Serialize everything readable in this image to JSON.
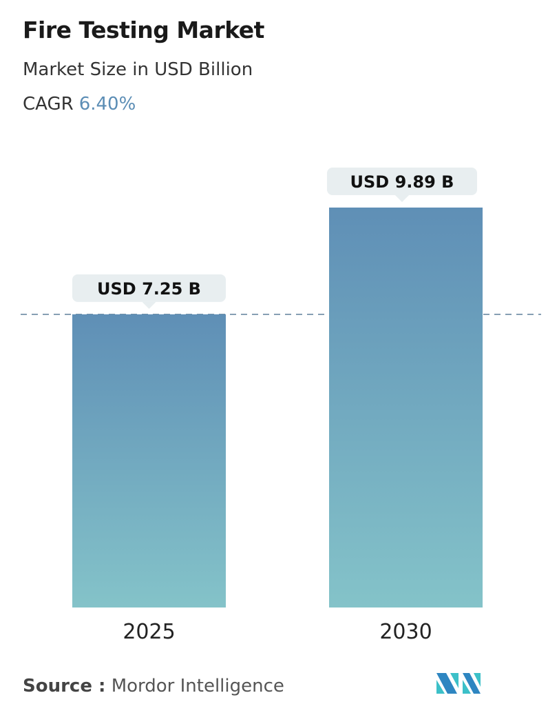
{
  "header": {
    "title": "Fire Testing Market",
    "subtitle": "Market Size in USD Billion",
    "cagr_label": "CAGR",
    "cagr_value": "6.40%"
  },
  "chart_data": {
    "type": "bar",
    "categories": [
      "2025",
      "2030"
    ],
    "values": [
      7.25,
      9.89
    ],
    "data_labels": [
      "USD 7.25 B",
      "USD 9.89 B"
    ],
    "ylabel": "",
    "xlabel": "",
    "ylim": [
      0,
      9.89
    ],
    "reference_line": {
      "value": 7.25,
      "style": "dashed"
    },
    "grid": false,
    "colors": {
      "bar_top": "#5f8fb6",
      "bar_bottom": "#84c3c9",
      "label_bg": "#e8eef0",
      "ref_line": "#5d7f99"
    }
  },
  "footer": {
    "source_label": "Source :",
    "source_value": "Mordor Intelligence",
    "logo_text": "MI"
  }
}
